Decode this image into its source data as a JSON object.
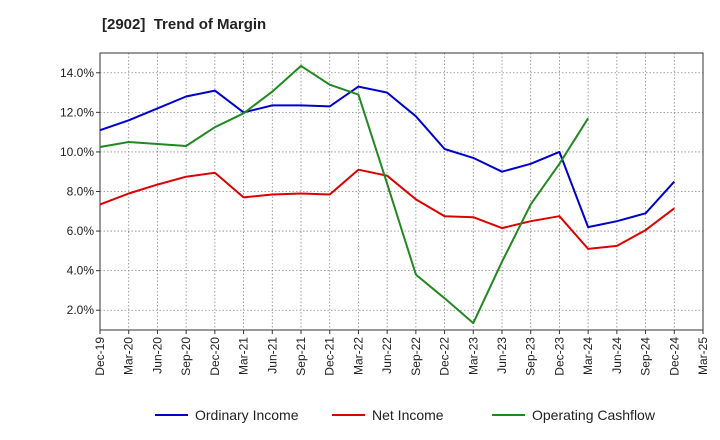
{
  "chart_data": {
    "type": "line",
    "title": "[2902]  Trend of Margin",
    "xlabel": "",
    "ylabel": "",
    "categories": [
      "Dec-19",
      "Mar-20",
      "Jun-20",
      "Sep-20",
      "Dec-20",
      "Mar-21",
      "Jun-21",
      "Sep-21",
      "Dec-21",
      "Mar-22",
      "Jun-22",
      "Sep-22",
      "Dec-22",
      "Mar-23",
      "Jun-23",
      "Sep-23",
      "Dec-23",
      "Mar-24",
      "Jun-24",
      "Sep-24",
      "Dec-24",
      "Mar-25"
    ],
    "ylim": [
      1.0,
      15.0
    ],
    "yticks": [
      2.0,
      4.0,
      6.0,
      8.0,
      10.0,
      12.0,
      14.0
    ],
    "ytick_labels": [
      "2.0%",
      "4.0%",
      "6.0%",
      "8.0%",
      "10.0%",
      "12.0%",
      "14.0%"
    ],
    "grid": true,
    "legend_position": "bottom",
    "series": [
      {
        "name": "Ordinary Income",
        "color": "#0000cc",
        "values": [
          11.1,
          11.6,
          12.2,
          12.8,
          13.1,
          12.0,
          12.35,
          12.35,
          12.3,
          13.3,
          13.0,
          11.8,
          10.15,
          9.7,
          9.0,
          9.4,
          10.0,
          6.2,
          6.5,
          6.9,
          8.5,
          null
        ]
      },
      {
        "name": "Net Income",
        "color": "#dd0000",
        "values": [
          7.35,
          7.9,
          8.35,
          8.75,
          8.95,
          7.7,
          7.85,
          7.9,
          7.85,
          9.1,
          8.8,
          7.6,
          6.75,
          6.7,
          6.15,
          6.5,
          6.75,
          5.1,
          5.25,
          6.05,
          7.15,
          null
        ]
      },
      {
        "name": "Operating Cashflow",
        "color": "#228822",
        "values": [
          10.25,
          10.5,
          10.4,
          10.3,
          11.25,
          11.95,
          13.05,
          14.35,
          13.4,
          12.9,
          8.4,
          3.8,
          2.6,
          1.35,
          4.45,
          7.35,
          9.4,
          11.7,
          null,
          null,
          null,
          null
        ]
      }
    ]
  }
}
